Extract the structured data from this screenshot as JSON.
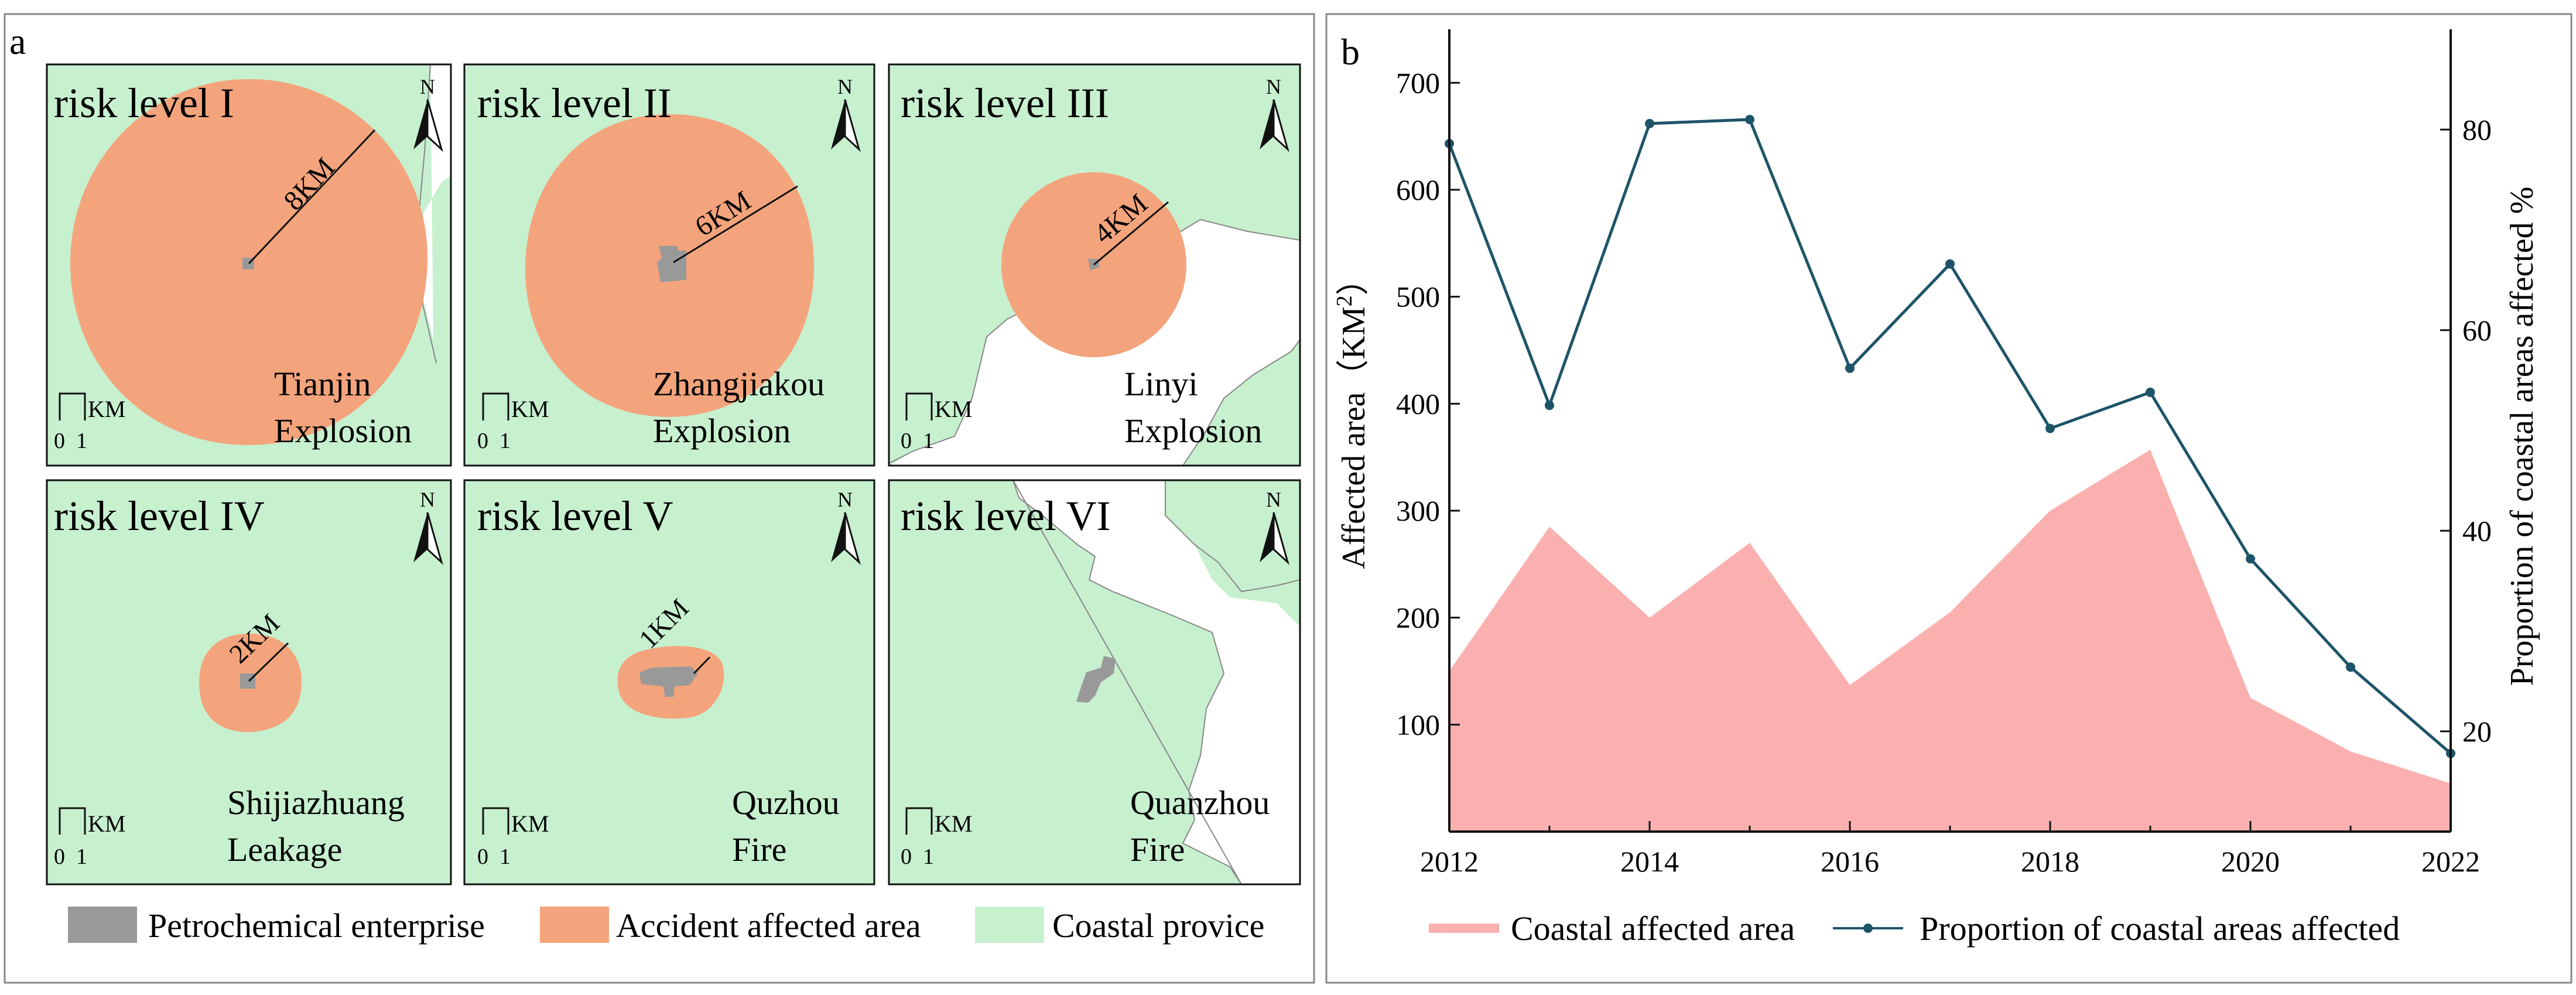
{
  "panel_a": {
    "label": "a",
    "maps": [
      {
        "title": "risk level I",
        "radius_label": "8KM",
        "place": "Tianjin",
        "event": "Explosion"
      },
      {
        "title": "risk level II",
        "radius_label": "6KM",
        "place": "Zhangjiakou",
        "event": "Explosion"
      },
      {
        "title": "risk level III",
        "radius_label": "4KM",
        "place": "Linyi",
        "event": "Explosion"
      },
      {
        "title": "risk level IV",
        "radius_label": "2KM",
        "place": "Shijiazhuang",
        "event": "Leakage"
      },
      {
        "title": "risk level V",
        "radius_label": "1KM",
        "place": "Quzhou",
        "event": "Fire"
      },
      {
        "title": "risk level VI",
        "radius_label": "",
        "place": "Quanzhou",
        "event": "Fire"
      }
    ],
    "scale_unit": "KM",
    "scale_ticks": [
      "0",
      "1"
    ],
    "north_label": "N",
    "legend": [
      {
        "label": "Petrochemical enterprise",
        "color": "#999999"
      },
      {
        "label": "Accident affected area",
        "color": "#f4a47c"
      },
      {
        "label": "Coastal provice",
        "color": "#c7f0cf"
      }
    ]
  },
  "panel_b": {
    "label": "b"
  },
  "chart_data": {
    "type": "area+line",
    "x": [
      2012,
      2013,
      2014,
      2015,
      2016,
      2017,
      2018,
      2019,
      2020,
      2021,
      2022
    ],
    "series": [
      {
        "name": "Coastal affected area",
        "axis": "left",
        "type": "area",
        "color": "#fbb0b0",
        "values": [
          150,
          285,
          200,
          270,
          137,
          205,
          300,
          357,
          125,
          75,
          45
        ]
      },
      {
        "name": "Proportion of coastal areas affected",
        "axis": "right",
        "type": "line",
        "color": "#1e5468",
        "values": [
          78.6,
          52.5,
          80.6,
          81.0,
          56.2,
          66.6,
          50.2,
          53.8,
          37.2,
          26.4,
          17.8
        ]
      }
    ],
    "xlabel": "",
    "ylabel": "Affected area（KM²）",
    "ylabel_main": "Affected area（KM",
    "ylabel_sup": "2",
    "ylabel_end": "）",
    "y2label": "Proportion of coastal areas affected %",
    "xlim": [
      2012,
      2022
    ],
    "ylim": [
      0,
      750
    ],
    "y2lim": [
      10,
      90
    ],
    "xticks": [
      2012,
      2014,
      2016,
      2018,
      2020,
      2022
    ],
    "yticks": [
      100,
      200,
      300,
      400,
      500,
      600,
      700
    ],
    "y2ticks": [
      20,
      40,
      60,
      80
    ],
    "legend_position": "bottom"
  }
}
